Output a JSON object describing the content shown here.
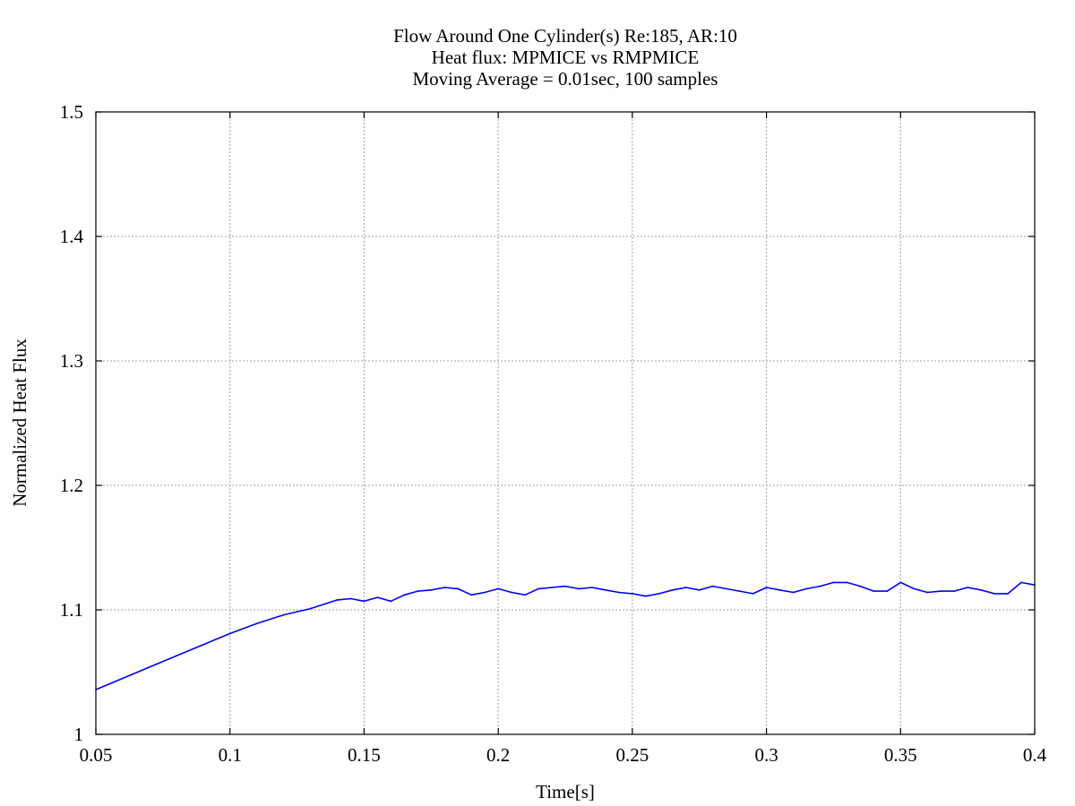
{
  "chart_data": {
    "type": "line",
    "title_lines": [
      "Flow Around One Cylinder(s) Re:185, AR:10",
      "Heat flux: MPMICE vs RMPMICE",
      "Moving Average = 0.01sec, 100 samples"
    ],
    "xlabel": "Time[s]",
    "ylabel": "Normalized Heat Flux",
    "xlim": [
      0.05,
      0.4
    ],
    "ylim": [
      1.0,
      1.5
    ],
    "x_ticks": [
      0.05,
      0.1,
      0.15,
      0.2,
      0.25,
      0.3,
      0.35,
      0.4
    ],
    "x_tick_labels": [
      "0.05",
      "0.1",
      "0.15",
      "0.2",
      "0.25",
      "0.3",
      "0.35",
      "0.4"
    ],
    "y_ticks": [
      1.0,
      1.1,
      1.2,
      1.3,
      1.4,
      1.5
    ],
    "y_tick_labels": [
      "1",
      "1.1",
      "1.2",
      "1.3",
      "1.4",
      "1.5"
    ],
    "grid": true,
    "legend": "none",
    "series": [
      {
        "color": "#0000ff",
        "x": [
          0.05,
          0.06,
          0.07,
          0.08,
          0.09,
          0.1,
          0.11,
          0.12,
          0.13,
          0.14,
          0.145,
          0.15,
          0.155,
          0.16,
          0.165,
          0.17,
          0.175,
          0.18,
          0.185,
          0.19,
          0.195,
          0.2,
          0.205,
          0.21,
          0.215,
          0.22,
          0.225,
          0.23,
          0.235,
          0.24,
          0.245,
          0.25,
          0.255,
          0.26,
          0.265,
          0.27,
          0.275,
          0.28,
          0.285,
          0.29,
          0.295,
          0.3,
          0.305,
          0.31,
          0.315,
          0.32,
          0.325,
          0.33,
          0.335,
          0.34,
          0.345,
          0.35,
          0.355,
          0.36,
          0.365,
          0.37,
          0.375,
          0.38,
          0.385,
          0.39,
          0.395,
          0.4
        ],
        "y": [
          1.036,
          1.045,
          1.054,
          1.063,
          1.072,
          1.081,
          1.089,
          1.096,
          1.101,
          1.108,
          1.109,
          1.107,
          1.11,
          1.107,
          1.112,
          1.115,
          1.116,
          1.118,
          1.117,
          1.112,
          1.114,
          1.117,
          1.114,
          1.112,
          1.117,
          1.118,
          1.119,
          1.117,
          1.118,
          1.116,
          1.114,
          1.113,
          1.111,
          1.113,
          1.116,
          1.118,
          1.116,
          1.119,
          1.117,
          1.115,
          1.113,
          1.118,
          1.116,
          1.114,
          1.117,
          1.119,
          1.122,
          1.122,
          1.119,
          1.115,
          1.115,
          1.122,
          1.117,
          1.114,
          1.115,
          1.115,
          1.118,
          1.116,
          1.113,
          1.113,
          1.122,
          1.12
        ]
      }
    ]
  }
}
